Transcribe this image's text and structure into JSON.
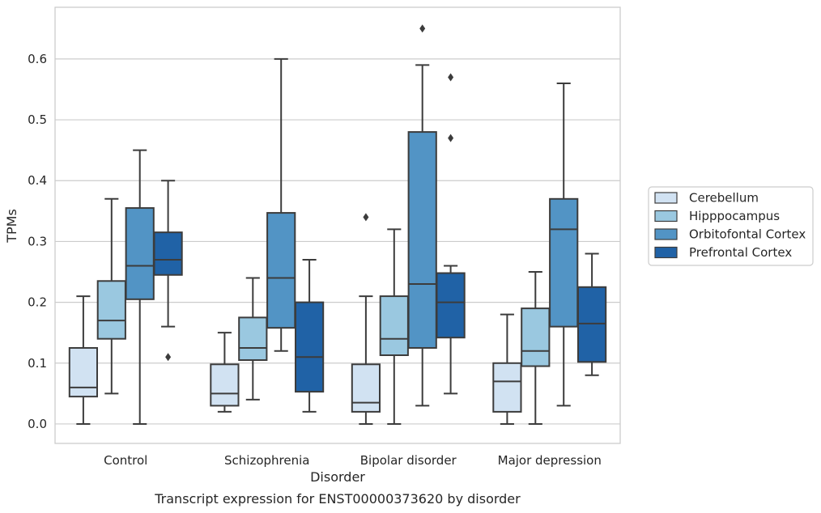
{
  "chart_data": {
    "type": "box",
    "xlabel": "Disorder",
    "ylabel": "TPMs",
    "caption": "Transcript expression for ENST00000373620 by disorder",
    "ylim": [
      -0.032,
      0.685
    ],
    "yticks": [
      "0.0",
      "0.1",
      "0.2",
      "0.3",
      "0.4",
      "0.5",
      "0.6"
    ],
    "grid": "horizontal",
    "legend_position": "outside right",
    "categories": [
      "Control",
      "Schizophrenia",
      "Bipolar disorder",
      "Major depression"
    ],
    "series": [
      {
        "name": "Cerebellum",
        "color": "#d1e2f2",
        "boxes": [
          {
            "whislo": 0.0,
            "q1": 0.045,
            "med": 0.06,
            "q3": 0.125,
            "whishi": 0.21,
            "fliers": []
          },
          {
            "whislo": 0.02,
            "q1": 0.03,
            "med": 0.05,
            "q3": 0.098,
            "whishi": 0.15,
            "fliers": []
          },
          {
            "whislo": 0.0,
            "q1": 0.02,
            "med": 0.035,
            "q3": 0.098,
            "whishi": 0.21,
            "fliers": [
              0.34
            ]
          },
          {
            "whislo": 0.0,
            "q1": 0.02,
            "med": 0.07,
            "q3": 0.1,
            "whishi": 0.18,
            "fliers": []
          }
        ]
      },
      {
        "name": "Hipppocampus",
        "color": "#9ac8e0",
        "boxes": [
          {
            "whislo": 0.05,
            "q1": 0.14,
            "med": 0.17,
            "q3": 0.235,
            "whishi": 0.37,
            "fliers": []
          },
          {
            "whislo": 0.04,
            "q1": 0.105,
            "med": 0.125,
            "q3": 0.175,
            "whishi": 0.24,
            "fliers": []
          },
          {
            "whislo": 0.0,
            "q1": 0.113,
            "med": 0.14,
            "q3": 0.21,
            "whishi": 0.32,
            "fliers": []
          },
          {
            "whislo": 0.0,
            "q1": 0.095,
            "med": 0.12,
            "q3": 0.19,
            "whishi": 0.25,
            "fliers": []
          }
        ]
      },
      {
        "name": "Orbitofontal Cortex",
        "color": "#5294c5",
        "boxes": [
          {
            "whislo": 0.0,
            "q1": 0.205,
            "med": 0.26,
            "q3": 0.355,
            "whishi": 0.45,
            "fliers": []
          },
          {
            "whislo": 0.12,
            "q1": 0.158,
            "med": 0.24,
            "q3": 0.347,
            "whishi": 0.6,
            "fliers": []
          },
          {
            "whislo": 0.03,
            "q1": 0.125,
            "med": 0.23,
            "q3": 0.48,
            "whishi": 0.59,
            "fliers": [
              0.65
            ]
          },
          {
            "whislo": 0.03,
            "q1": 0.16,
            "med": 0.32,
            "q3": 0.37,
            "whishi": 0.56,
            "fliers": []
          }
        ]
      },
      {
        "name": "Prefrontal Cortex",
        "color": "#2062a6",
        "boxes": [
          {
            "whislo": 0.16,
            "q1": 0.245,
            "med": 0.27,
            "q3": 0.315,
            "whishi": 0.4,
            "fliers": [
              0.11
            ]
          },
          {
            "whislo": 0.02,
            "q1": 0.053,
            "med": 0.11,
            "q3": 0.2,
            "whishi": 0.27,
            "fliers": []
          },
          {
            "whislo": 0.05,
            "q1": 0.142,
            "med": 0.2,
            "q3": 0.248,
            "whishi": 0.26,
            "fliers": [
              0.57,
              0.47
            ]
          },
          {
            "whislo": 0.08,
            "q1": 0.102,
            "med": 0.165,
            "q3": 0.225,
            "whishi": 0.28,
            "fliers": []
          }
        ]
      }
    ]
  }
}
